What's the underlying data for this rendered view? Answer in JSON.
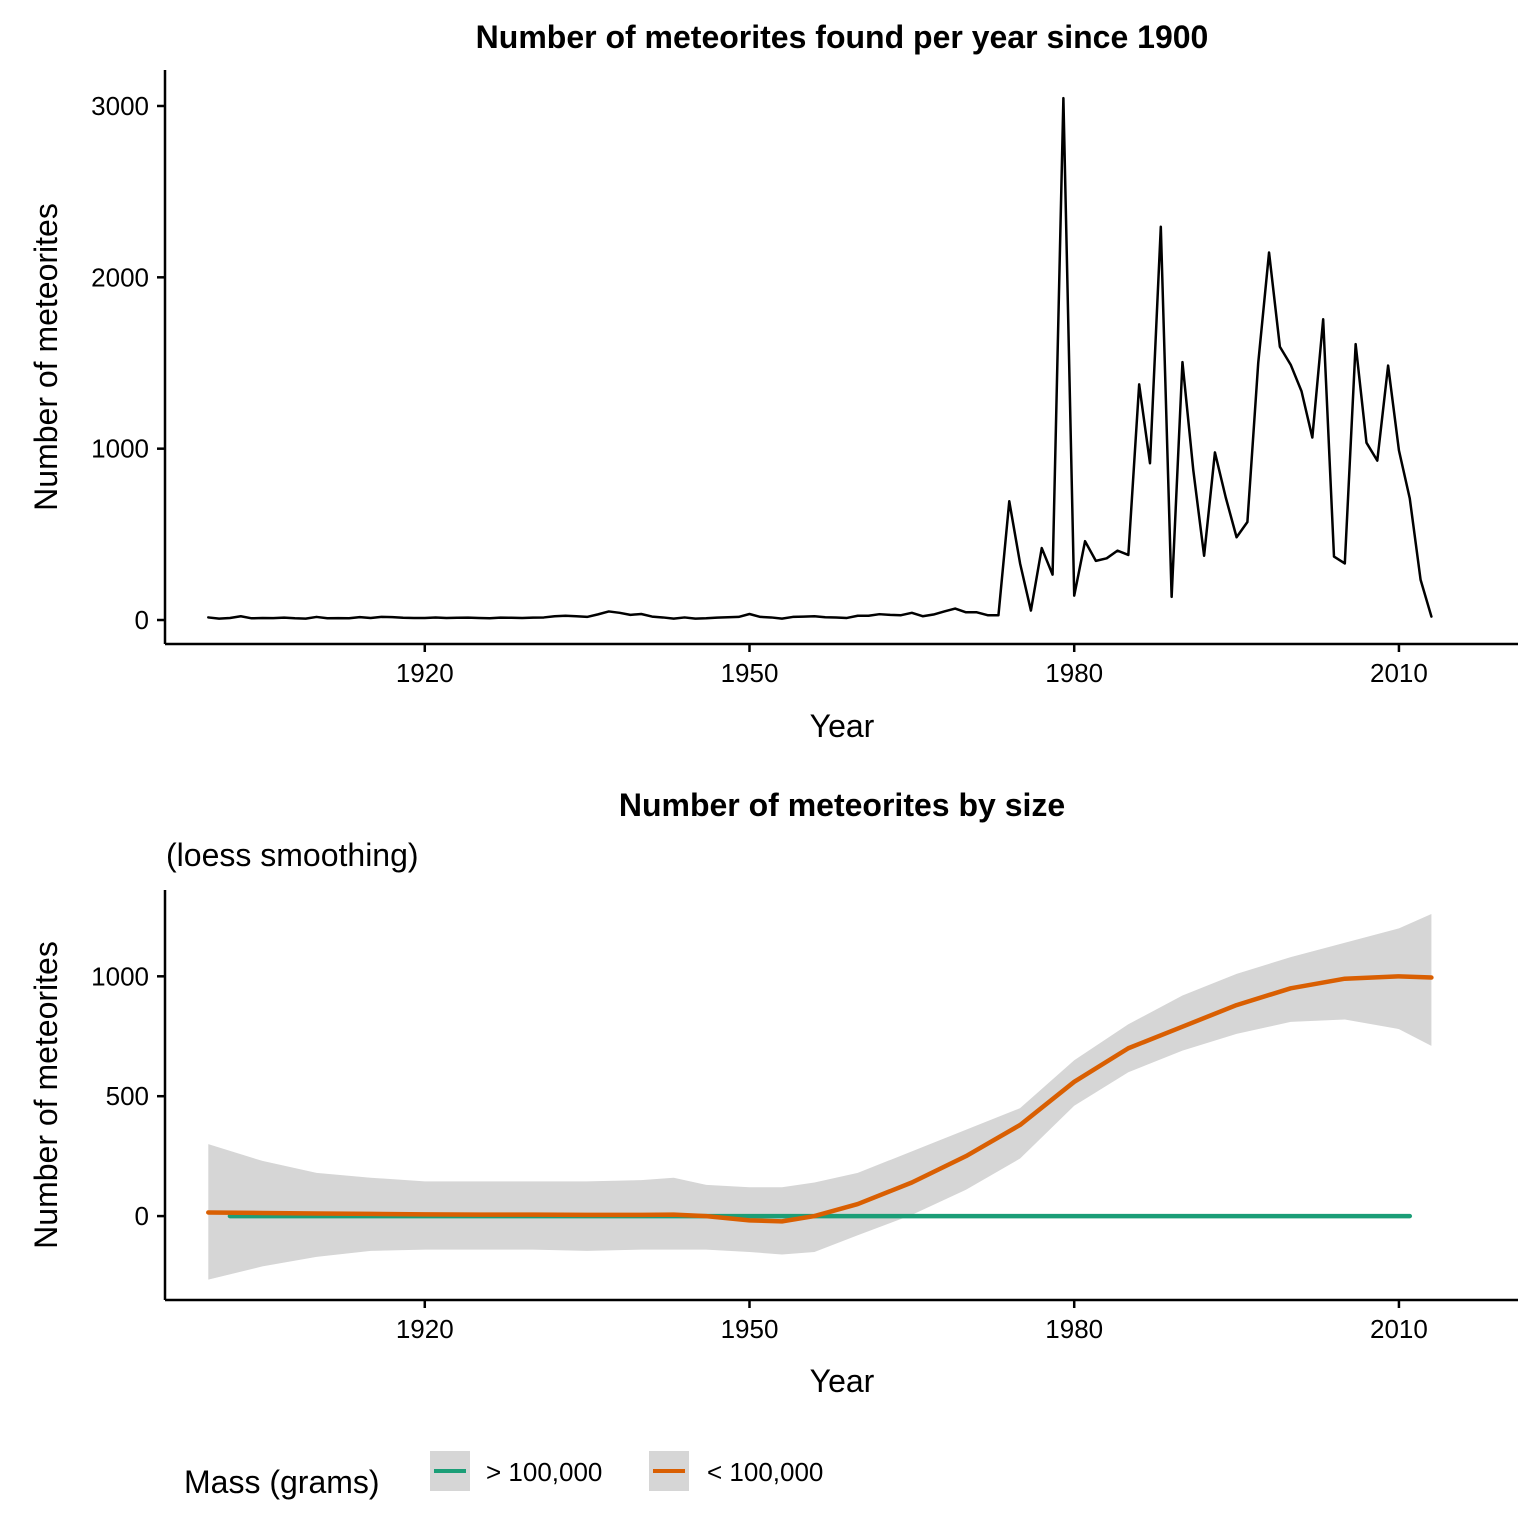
{
  "chart_data": [
    {
      "type": "line",
      "title": "Number of meteorites found per year since 1900",
      "xlabel": "Year",
      "ylabel": "Number of meteorites",
      "xlim": [
        1896,
        2021
      ],
      "ylim": [
        -140,
        3210
      ],
      "x_ticks": [
        1920,
        1950,
        1980,
        2010
      ],
      "y_ticks": [
        0,
        1000,
        2000,
        3000
      ],
      "grid": false,
      "series": [
        {
          "color": "#000000",
          "x": [
            1900,
            1901,
            1902,
            1903,
            1904,
            1905,
            1906,
            1907,
            1908,
            1909,
            1910,
            1911,
            1912,
            1913,
            1914,
            1915,
            1916,
            1917,
            1918,
            1919,
            1920,
            1921,
            1922,
            1923,
            1924,
            1925,
            1926,
            1927,
            1928,
            1929,
            1930,
            1931,
            1932,
            1933,
            1934,
            1935,
            1936,
            1937,
            1938,
            1939,
            1940,
            1941,
            1942,
            1943,
            1944,
            1945,
            1946,
            1947,
            1948,
            1949,
            1950,
            1951,
            1952,
            1953,
            1954,
            1955,
            1956,
            1957,
            1958,
            1959,
            1960,
            1961,
            1962,
            1963,
            1964,
            1965,
            1966,
            1967,
            1968,
            1969,
            1970,
            1971,
            1972,
            1973,
            1974,
            1975,
            1976,
            1977,
            1978,
            1979,
            1980,
            1981,
            1982,
            1983,
            1984,
            1985,
            1986,
            1987,
            1988,
            1989,
            1990,
            1991,
            1992,
            1993,
            1994,
            1995,
            1996,
            1997,
            1998,
            1999,
            2000,
            2001,
            2002,
            2003,
            2004,
            2005,
            2006,
            2007,
            2008,
            2009,
            2010,
            2011,
            2012,
            2013
          ],
          "values": [
            15,
            8,
            12,
            22,
            10,
            12,
            11,
            14,
            10,
            8,
            18,
            10,
            11,
            10,
            17,
            12,
            18,
            17,
            13,
            12,
            12,
            15,
            12,
            13,
            14,
            12,
            10,
            14,
            13,
            12,
            14,
            15,
            22,
            25,
            22,
            18,
            33,
            50,
            42,
            30,
            35,
            20,
            15,
            8,
            15,
            8,
            10,
            14,
            16,
            18,
            35,
            18,
            15,
            8,
            18,
            20,
            22,
            16,
            15,
            12,
            25,
            25,
            34,
            30,
            28,
            42,
            22,
            32,
            50,
            67,
            45,
            45,
            28,
            28,
            693,
            330,
            55,
            420,
            265,
            3046,
            142,
            460,
            345,
            360,
            405,
            380,
            1375,
            915,
            2295,
            135,
            1505,
            875,
            375,
            978,
            715,
            483,
            572,
            1500,
            2145,
            1595,
            1490,
            1335,
            1065,
            1755,
            370,
            330,
            1610,
            1035,
            930,
            1485,
            990,
            710,
            235,
            20
          ]
        }
      ]
    },
    {
      "type": "line",
      "title": "Number of meteorites by size",
      "subtitle": "(loess smoothing)",
      "xlabel": "Year",
      "ylabel": "Number of meteorites",
      "xlim": [
        1896,
        2021
      ],
      "ylim": [
        -350,
        1360
      ],
      "x_ticks": [
        1920,
        1950,
        1980,
        2010
      ],
      "y_ticks": [
        0,
        500,
        1000
      ],
      "grid": false,
      "legend": {
        "position": "bottom-left",
        "title": "Mass (grams)",
        "entries": [
          {
            "label": "> 100,000",
            "color": "#1B9E77"
          },
          {
            "label": "< 100,000",
            "color": "#D95F02"
          }
        ]
      },
      "series": [
        {
          "name": "> 100,000",
          "color": "#1B9E77",
          "x": [
            1902,
            1930,
            1960,
            1990,
            2011
          ],
          "values": [
            0,
            0,
            0,
            0,
            0
          ]
        },
        {
          "name": "< 100,000",
          "color": "#D95F02",
          "x": [
            1900,
            1905,
            1910,
            1915,
            1920,
            1925,
            1930,
            1935,
            1940,
            1943,
            1946,
            1950,
            1953,
            1956,
            1960,
            1965,
            1970,
            1975,
            1980,
            1985,
            1990,
            1995,
            2000,
            2005,
            2010,
            2013
          ],
          "values": [
            15,
            13,
            11,
            9,
            7,
            6,
            6,
            5,
            5,
            6,
            0,
            -18,
            -22,
            0,
            50,
            140,
            250,
            380,
            560,
            700,
            790,
            880,
            950,
            990,
            1000,
            995
          ],
          "band_upper": [
            300,
            230,
            180,
            160,
            145,
            145,
            145,
            145,
            150,
            160,
            130,
            120,
            120,
            140,
            180,
            270,
            360,
            450,
            650,
            800,
            920,
            1010,
            1080,
            1140,
            1200,
            1260
          ],
          "band_lower": [
            -265,
            -210,
            -170,
            -145,
            -140,
            -140,
            -140,
            -145,
            -140,
            -140,
            -140,
            -150,
            -160,
            -150,
            -80,
            5,
            110,
            240,
            460,
            600,
            690,
            760,
            810,
            820,
            780,
            710
          ]
        }
      ]
    }
  ]
}
